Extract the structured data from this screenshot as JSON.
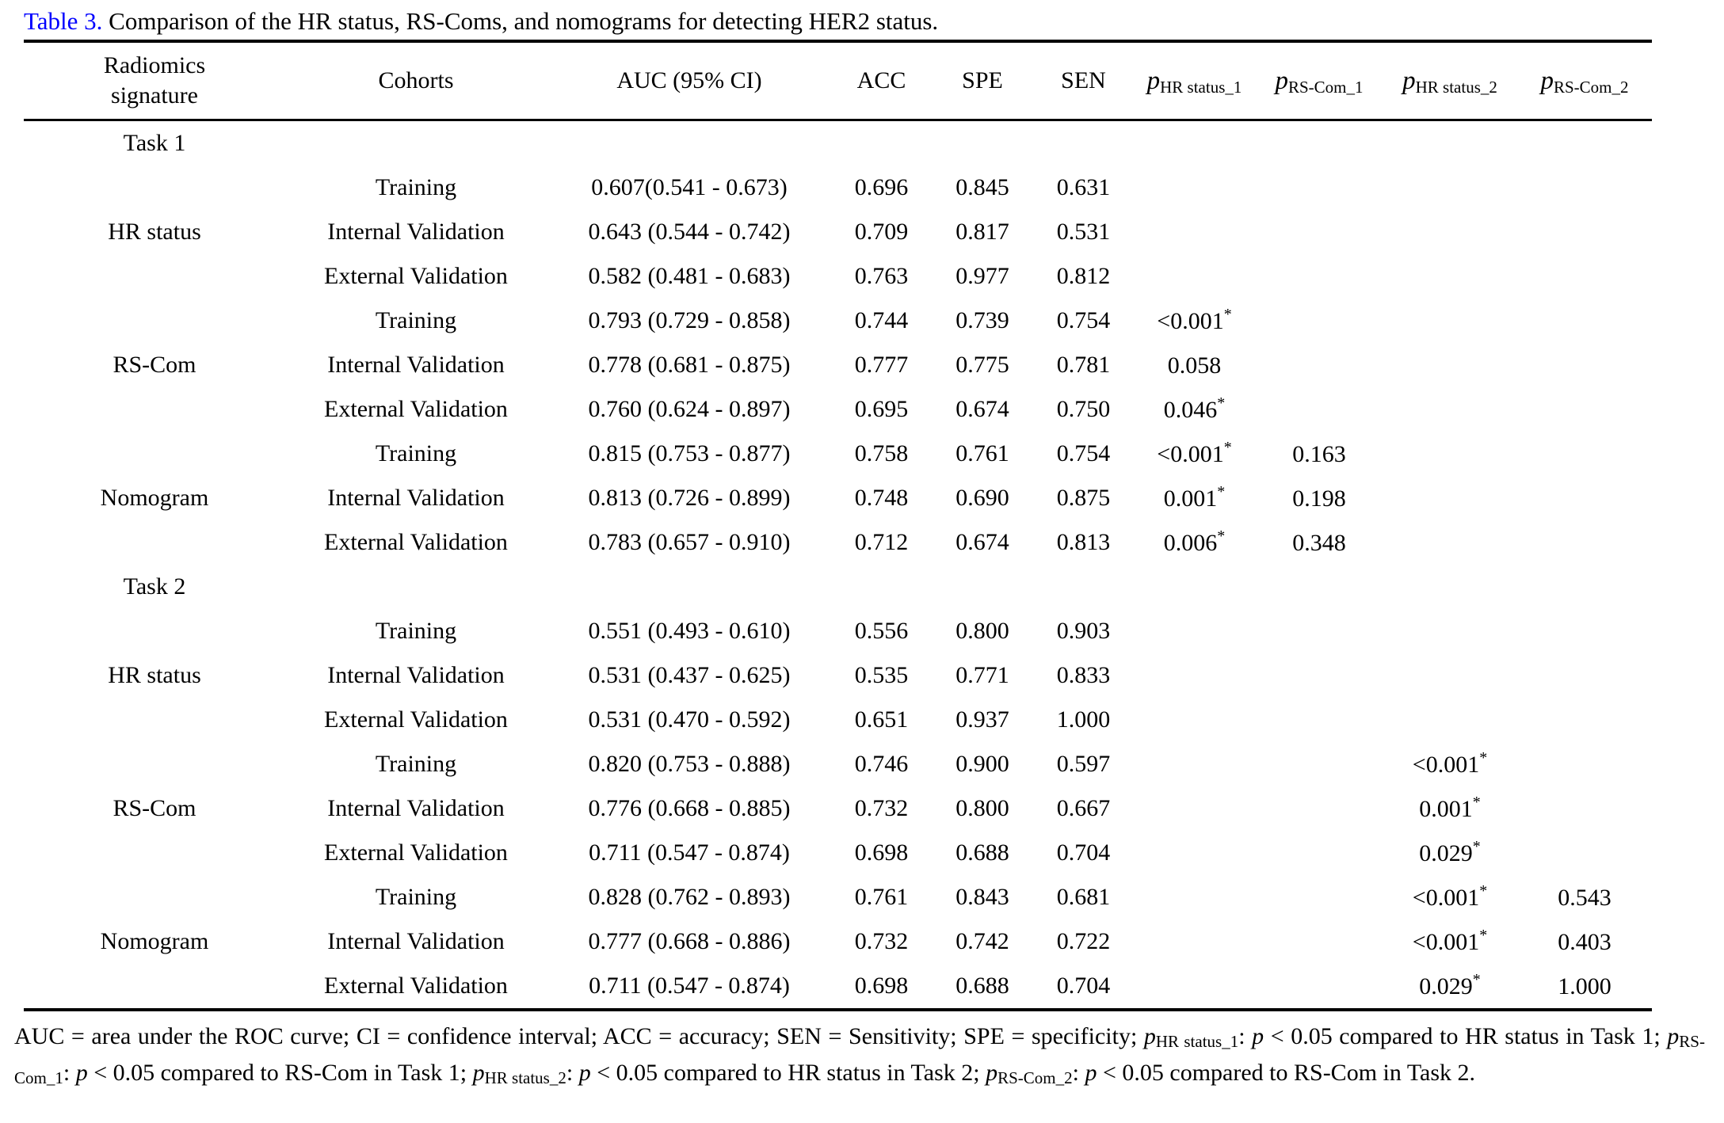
{
  "accent_color": "#0000FF",
  "title": {
    "label": "Table 3.",
    "text": " Comparison of the HR status, RS-Coms, and nomograms for detecting HER2 status."
  },
  "table": {
    "headers": {
      "signature": "Radiomics signature",
      "cohorts": "Cohorts",
      "auc": "AUC (95% CI)",
      "acc": "ACC",
      "spe": "SPE",
      "sen": "SEN",
      "p_cols": [
        {
          "p": "p",
          "sub": "HR status_1"
        },
        {
          "p": "p",
          "sub": "RS-Com_1"
        },
        {
          "p": "p",
          "sub": "HR status_2"
        },
        {
          "p": "p",
          "sub": "RS-Com_2"
        }
      ]
    },
    "rows": [
      {
        "section": "Task 1"
      },
      {
        "cohort": "Training",
        "auc": "0.607(0.541 - 0.673)",
        "acc": "0.696",
        "spe": "0.845",
        "sen": "0.631"
      },
      {
        "sig": "HR status",
        "cohort": "Internal Validation",
        "auc": "0.643 (0.544 - 0.742)",
        "acc": "0.709",
        "spe": "0.817",
        "sen": "0.531"
      },
      {
        "cohort": "External Validation",
        "auc": "0.582 (0.481 - 0.683)",
        "acc": "0.763",
        "spe": "0.977",
        "sen": "0.812"
      },
      {
        "cohort": "Training",
        "auc": "0.793 (0.729 - 0.858)",
        "acc": "0.744",
        "spe": "0.739",
        "sen": "0.754",
        "p1": "<0.001",
        "p1star": "*"
      },
      {
        "sig": "RS-Com",
        "cohort": "Internal Validation",
        "auc": "0.778 (0.681 - 0.875)",
        "acc": "0.777",
        "spe": "0.775",
        "sen": "0.781",
        "p1": "0.058"
      },
      {
        "cohort": "External Validation",
        "auc": "0.760 (0.624 - 0.897)",
        "acc": "0.695",
        "spe": "0.674",
        "sen": "0.750",
        "p1": "0.046",
        "p1star": "*"
      },
      {
        "cohort": "Training",
        "auc": "0.815 (0.753 - 0.877)",
        "acc": "0.758",
        "spe": "0.761",
        "sen": "0.754",
        "p1": "<0.001",
        "p1star": "*",
        "p2": "0.163"
      },
      {
        "sig": "Nomogram",
        "cohort": "Internal Validation",
        "auc": "0.813 (0.726 - 0.899)",
        "acc": "0.748",
        "spe": "0.690",
        "sen": "0.875",
        "p1": "0.001",
        "p1star": "*",
        "p2": "0.198"
      },
      {
        "cohort": "External Validation",
        "auc": "0.783 (0.657 - 0.910)",
        "acc": "0.712",
        "spe": "0.674",
        "sen": "0.813",
        "p1": "0.006",
        "p1star": "*",
        "p2": "0.348"
      },
      {
        "section": "Task 2"
      },
      {
        "cohort": "Training",
        "auc": "0.551 (0.493 - 0.610)",
        "acc": "0.556",
        "spe": "0.800",
        "sen": "0.903"
      },
      {
        "sig": "HR status",
        "cohort": "Internal Validation",
        "auc": "0.531 (0.437 - 0.625)",
        "acc": "0.535",
        "spe": "0.771",
        "sen": "0.833"
      },
      {
        "cohort": "External Validation",
        "auc": "0.531 (0.470 - 0.592)",
        "acc": "0.651",
        "spe": "0.937",
        "sen": "1.000"
      },
      {
        "cohort": "Training",
        "auc": "0.820 (0.753 - 0.888)",
        "acc": "0.746",
        "spe": "0.900",
        "sen": "0.597",
        "p3": "<0.001",
        "p3star": "*"
      },
      {
        "sig": "RS-Com",
        "cohort": "Internal Validation",
        "auc": "0.776 (0.668 - 0.885)",
        "acc": "0.732",
        "spe": "0.800",
        "sen": "0.667",
        "p3": "0.001",
        "p3star": "*"
      },
      {
        "cohort": "External Validation",
        "auc": "0.711 (0.547 - 0.874)",
        "acc": "0.698",
        "spe": "0.688",
        "sen": "0.704",
        "p3": "0.029",
        "p3star": "*"
      },
      {
        "cohort": "Training",
        "auc": "0.828 (0.762 - 0.893)",
        "acc": "0.761",
        "spe": "0.843",
        "sen": "0.681",
        "p3": "<0.001",
        "p3star": "*",
        "p4": "0.543"
      },
      {
        "sig": "Nomogram",
        "cohort": "Internal Validation",
        "auc": "0.777 (0.668 - 0.886)",
        "acc": "0.732",
        "spe": "0.742",
        "sen": "0.722",
        "p3": "<0.001",
        "p3star": "*",
        "p4": "0.403"
      },
      {
        "cohort": "External Validation",
        "auc": "0.711 (0.547 - 0.874)",
        "acc": "0.698",
        "spe": "0.688",
        "sen": "0.704",
        "p3": "0.029",
        "p3star": "*",
        "p4": "1.000"
      }
    ]
  },
  "footnote": {
    "segments": [
      {
        "t": "AUC = area under the ROC curve; CI = confidence interval; ACC = accuracy; SEN = Sensitivity; SPE = specificity; "
      },
      {
        "t": "p"
      },
      {
        "t": "HR status_1"
      },
      {
        "t": ": "
      },
      {
        "t": "p"
      },
      {
        "t": " < 0.05 compared to HR status in Task 1; "
      },
      {
        "t": "p"
      },
      {
        "t": "RS-Com_1"
      },
      {
        "t": ": "
      },
      {
        "t": "p"
      },
      {
        "t": " < 0.05 compared to RS-Com in Task 1; "
      },
      {
        "t": "p"
      },
      {
        "t": "HR status_2"
      },
      {
        "t": ": "
      },
      {
        "t": "p"
      },
      {
        "t": " < 0.05 compared to HR status in Task 2; "
      },
      {
        "t": "p"
      },
      {
        "t": "RS-Com_2"
      },
      {
        "t": ": "
      },
      {
        "t": "p"
      },
      {
        "t": " < 0.05 compared to RS-Com in Task 2."
      }
    ]
  }
}
